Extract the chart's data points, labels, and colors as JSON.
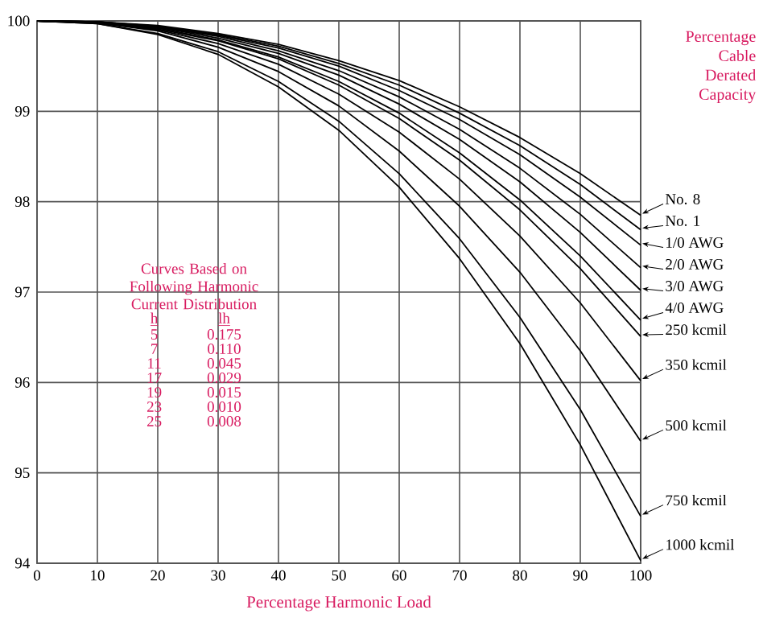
{
  "chart_data": {
    "type": "line",
    "xlabel": "Percentage Harmonic Load",
    "ylabel": "Percentage Cable Derated Capacity",
    "x": [
      0,
      10,
      20,
      30,
      40,
      50,
      60,
      70,
      80,
      90,
      100
    ],
    "xlim": [
      0,
      100
    ],
    "ylim": [
      94,
      100
    ],
    "xticks": [
      0,
      10,
      20,
      30,
      40,
      50,
      60,
      70,
      80,
      90,
      100
    ],
    "yticks": [
      94,
      95,
      96,
      97,
      98,
      99,
      100
    ],
    "grid": true,
    "legend": "right",
    "marker": "none",
    "line_style": "solid",
    "series": [
      {
        "name": "No. 8",
        "color": "#000000",
        "values": [
          100,
          99.99,
          99.95,
          99.86,
          99.74,
          99.56,
          99.34,
          99.05,
          98.71,
          98.31,
          97.85
        ]
      },
      {
        "name": "No. 1",
        "color": "#000000",
        "values": [
          100,
          99.99,
          99.94,
          99.85,
          99.72,
          99.53,
          99.29,
          98.98,
          98.62,
          98.19,
          97.69
        ]
      },
      {
        "name": "1/0 AWG",
        "color": "#000000",
        "values": [
          100,
          99.99,
          99.94,
          99.84,
          99.7,
          99.5,
          99.23,
          98.91,
          98.52,
          98.05,
          97.52
        ]
      },
      {
        "name": "2/0 AWG",
        "color": "#000000",
        "values": [
          100,
          99.99,
          99.93,
          99.83,
          99.67,
          99.45,
          99.16,
          98.8,
          98.37,
          97.86,
          97.27
        ]
      },
      {
        "name": "3/0 AWG",
        "color": "#000000",
        "values": [
          100,
          99.99,
          99.93,
          99.81,
          99.64,
          99.4,
          99.08,
          98.69,
          98.22,
          97.66,
          97.02
        ]
      },
      {
        "name": "4/0 AWG",
        "color": "#000000",
        "values": [
          100,
          99.98,
          99.92,
          99.79,
          99.6,
          99.33,
          98.98,
          98.54,
          98.02,
          97.4,
          96.69
        ]
      },
      {
        "name": "250 kcmil",
        "color": "#000000",
        "values": [
          100,
          99.98,
          99.91,
          99.78,
          99.58,
          99.29,
          98.92,
          98.46,
          97.91,
          97.26,
          96.51
        ]
      },
      {
        "name": "350 kcmil",
        "color": "#000000",
        "values": [
          100,
          99.98,
          99.9,
          99.75,
          99.52,
          99.19,
          98.77,
          98.25,
          97.62,
          96.88,
          96.02
        ]
      },
      {
        "name": "500 kcmil",
        "color": "#000000",
        "values": [
          100,
          99.98,
          99.89,
          99.71,
          99.44,
          99.06,
          98.56,
          97.95,
          97.22,
          96.35,
          95.35
        ]
      },
      {
        "name": "750 kcmil",
        "color": "#000000",
        "values": [
          100,
          99.97,
          99.86,
          99.66,
          99.33,
          98.89,
          98.31,
          97.59,
          96.72,
          95.7,
          94.52
        ]
      },
      {
        "name": "1000 kcmil",
        "color": "#000000",
        "values": [
          100,
          99.97,
          99.85,
          99.63,
          99.27,
          98.79,
          98.16,
          97.37,
          96.43,
          95.31,
          94.03
        ]
      }
    ],
    "annotations": [
      "Curves Based on Following Harmonic Current Distribution",
      "h",
      "lh",
      "5",
      "0.175",
      "7",
      "0.110",
      "11",
      "0.045",
      "17",
      "0.029",
      "19",
      "0.015",
      "23",
      "0.010",
      "25",
      "0.008"
    ]
  }
}
